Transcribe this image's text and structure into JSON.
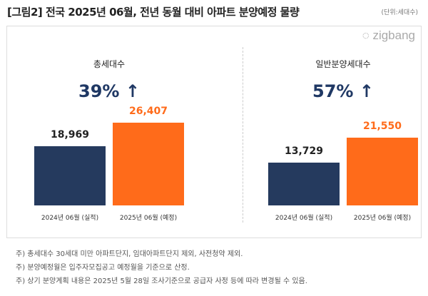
{
  "title": "[그림2] 전국 2025년 06월, 전년 동월 대비 아파트 분양예정 물량",
  "unit": "(단위:세대수)",
  "logo": "zigbang",
  "colors": {
    "2024": "#253a5e",
    "2025": "#ff6b1a",
    "pct": "#1f3864"
  },
  "chart_data": [
    {
      "type": "bar",
      "title": "총세대수",
      "change": "39% ↑",
      "categories": [
        "2024년 06월 (실적)",
        "2025년 06월 (예정)"
      ],
      "values": [
        18969,
        26407
      ],
      "labels": [
        "18,969",
        "26,407"
      ]
    },
    {
      "type": "bar",
      "title": "일반분양세대수",
      "change": "57% ↑",
      "categories": [
        "2024년 06월 (실적)",
        "2025년 06월 (예정)"
      ],
      "values": [
        13729,
        21550
      ],
      "labels": [
        "13,729",
        "21,550"
      ]
    }
  ],
  "notes": [
    "주) 총세대수 30세대 미만 아파트단지, 임대아파트단지 제외, 사전청약 제외.",
    "주) 분양예정월은 입주자모집공고 예정월을 기준으로 산정.",
    "주) 상기 분양계획 내용은 2025년 5월  28일  조사기준으로 공급자 사정 등에 따라 변경될 수 있음."
  ]
}
